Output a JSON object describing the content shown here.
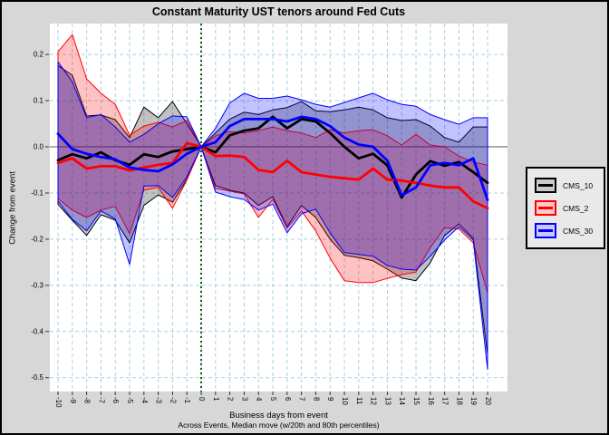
{
  "title": "Constant Maturity UST tenors around Fed Cuts",
  "axes": {
    "y_label": "Change from event",
    "x_label": "Business days from event",
    "subtitle": "Across Events, Median move (w/20th and 80th percentiles)",
    "y_tick_labels": [
      "0.2",
      "0.1",
      "0.0",
      "-0.1",
      "-0.2",
      "-0.3",
      "-0.4",
      "-0.5"
    ]
  },
  "colors": {
    "figure_bg": "#d7d7d7",
    "panel_bg": "#ffffff",
    "grid": "#aacfe0",
    "zero_line": "#ababab",
    "event_line": "#006400",
    "tick": "#333333",
    "legend_bg": "#e9e9e9",
    "border": "#000000"
  },
  "legend": {
    "entries": [
      {
        "label": "CMS_10",
        "color": "#000000",
        "fill": "#c9c9c9"
      },
      {
        "label": "CMS_2",
        "color": "#ff0000",
        "fill": "#ffc9c9"
      },
      {
        "label": "CMS_30",
        "color": "#0000ff",
        "fill": "#c9c9ff"
      }
    ]
  },
  "chart_data": {
    "type": "line",
    "title": "Constant Maturity UST tenors around Fed Cuts",
    "xlabel": "Business days from event",
    "ylabel": "Change from event",
    "note": "Across Events, Median move (w/20th and 80th percentiles)",
    "xlim": [
      -10.57,
      21.39
    ],
    "ylim": [
      -0.53,
      0.267
    ],
    "grid": true,
    "event_line_x": 0,
    "zero_line_y": 0,
    "x": [
      -10,
      -9,
      -8,
      -7,
      -6,
      -5,
      -4,
      -3,
      -2,
      -1,
      0,
      1,
      2,
      3,
      4,
      5,
      6,
      7,
      8,
      9,
      10,
      11,
      12,
      13,
      14,
      15,
      16,
      17,
      18,
      19,
      20
    ],
    "series": [
      {
        "name": "CMS_10",
        "color": "#000000",
        "median": [
          -0.029,
          -0.016,
          -0.025,
          -0.012,
          -0.029,
          -0.039,
          -0.016,
          -0.022,
          -0.01,
          -0.005,
          0,
          -0.012,
          0.025,
          0.035,
          0.04,
          0.065,
          0.04,
          0.06,
          0.055,
          0.03,
          0.0,
          -0.025,
          -0.015,
          -0.04,
          -0.11,
          -0.06,
          -0.031,
          -0.041,
          -0.033,
          -0.055,
          -0.078
        ],
        "p80": [
          0.176,
          0.155,
          0.067,
          0.069,
          0.059,
          0.02,
          0.086,
          0.063,
          0.098,
          0.05,
          0,
          0.03,
          0.06,
          0.075,
          0.07,
          0.08,
          0.085,
          0.098,
          0.078,
          0.076,
          0.08,
          0.086,
          0.08,
          0.063,
          0.057,
          0.059,
          0.045,
          0.02,
          0.01,
          0.043,
          0.043
        ],
        "p20": [
          -0.125,
          -0.159,
          -0.192,
          -0.147,
          -0.159,
          -0.208,
          -0.127,
          -0.104,
          -0.12,
          -0.07,
          0,
          -0.084,
          -0.094,
          -0.1,
          -0.127,
          -0.108,
          -0.173,
          -0.127,
          -0.153,
          -0.2,
          -0.235,
          -0.24,
          -0.247,
          -0.265,
          -0.284,
          -0.29,
          -0.251,
          -0.192,
          -0.167,
          -0.198,
          -0.45
        ]
      },
      {
        "name": "CMS_2",
        "color": "#ff0000",
        "median": [
          -0.035,
          -0.025,
          -0.047,
          -0.042,
          -0.042,
          -0.051,
          -0.045,
          -0.039,
          -0.035,
          0.008,
          0,
          -0.02,
          -0.019,
          -0.022,
          -0.05,
          -0.055,
          -0.03,
          -0.055,
          -0.06,
          -0.065,
          -0.068,
          -0.071,
          -0.047,
          -0.071,
          -0.073,
          -0.078,
          -0.084,
          -0.088,
          -0.088,
          -0.118,
          -0.133
        ],
        "p80": [
          0.206,
          0.243,
          0.147,
          0.116,
          0.092,
          0.025,
          0.045,
          0.053,
          0.043,
          0.057,
          0,
          0.024,
          0.033,
          0.03,
          0.035,
          0.043,
          0.035,
          0.03,
          0.02,
          0.037,
          0.03,
          0.035,
          0.037,
          0.024,
          0.004,
          0.027,
          0.004,
          0.0,
          -0.02,
          -0.033,
          -0.04
        ],
        "p20": [
          -0.112,
          -0.137,
          -0.153,
          -0.137,
          -0.129,
          -0.188,
          -0.094,
          -0.088,
          -0.133,
          -0.072,
          0,
          -0.09,
          -0.096,
          -0.102,
          -0.153,
          -0.114,
          -0.176,
          -0.139,
          -0.182,
          -0.241,
          -0.29,
          -0.294,
          -0.294,
          -0.285,
          -0.277,
          -0.271,
          -0.218,
          -0.175,
          -0.178,
          -0.208,
          -0.316
        ]
      },
      {
        "name": "CMS_30",
        "color": "#0000ff",
        "median": [
          0.028,
          -0.005,
          -0.015,
          -0.022,
          -0.027,
          -0.045,
          -0.05,
          -0.053,
          -0.038,
          -0.015,
          0,
          0.01,
          0.045,
          0.06,
          0.06,
          0.06,
          0.055,
          0.065,
          0.06,
          0.045,
          0.02,
          0.005,
          0.0,
          -0.03,
          -0.105,
          -0.088,
          -0.04,
          -0.035,
          -0.04,
          -0.025,
          -0.115
        ],
        "p80": [
          0.184,
          0.141,
          0.063,
          0.07,
          0.043,
          0.01,
          0.027,
          0.05,
          0.067,
          0.065,
          0,
          0.04,
          0.095,
          0.116,
          0.105,
          0.105,
          0.11,
          0.102,
          0.092,
          0.086,
          0.096,
          0.106,
          0.116,
          0.102,
          0.092,
          0.088,
          0.07,
          0.059,
          0.049,
          0.063,
          0.063
        ],
        "p20": [
          -0.118,
          -0.157,
          -0.182,
          -0.139,
          -0.156,
          -0.255,
          -0.085,
          -0.084,
          -0.11,
          -0.065,
          0,
          -0.098,
          -0.108,
          -0.114,
          -0.137,
          -0.124,
          -0.186,
          -0.145,
          -0.135,
          -0.186,
          -0.229,
          -0.233,
          -0.237,
          -0.257,
          -0.265,
          -0.267,
          -0.237,
          -0.202,
          -0.173,
          -0.202,
          -0.482
        ]
      }
    ]
  }
}
